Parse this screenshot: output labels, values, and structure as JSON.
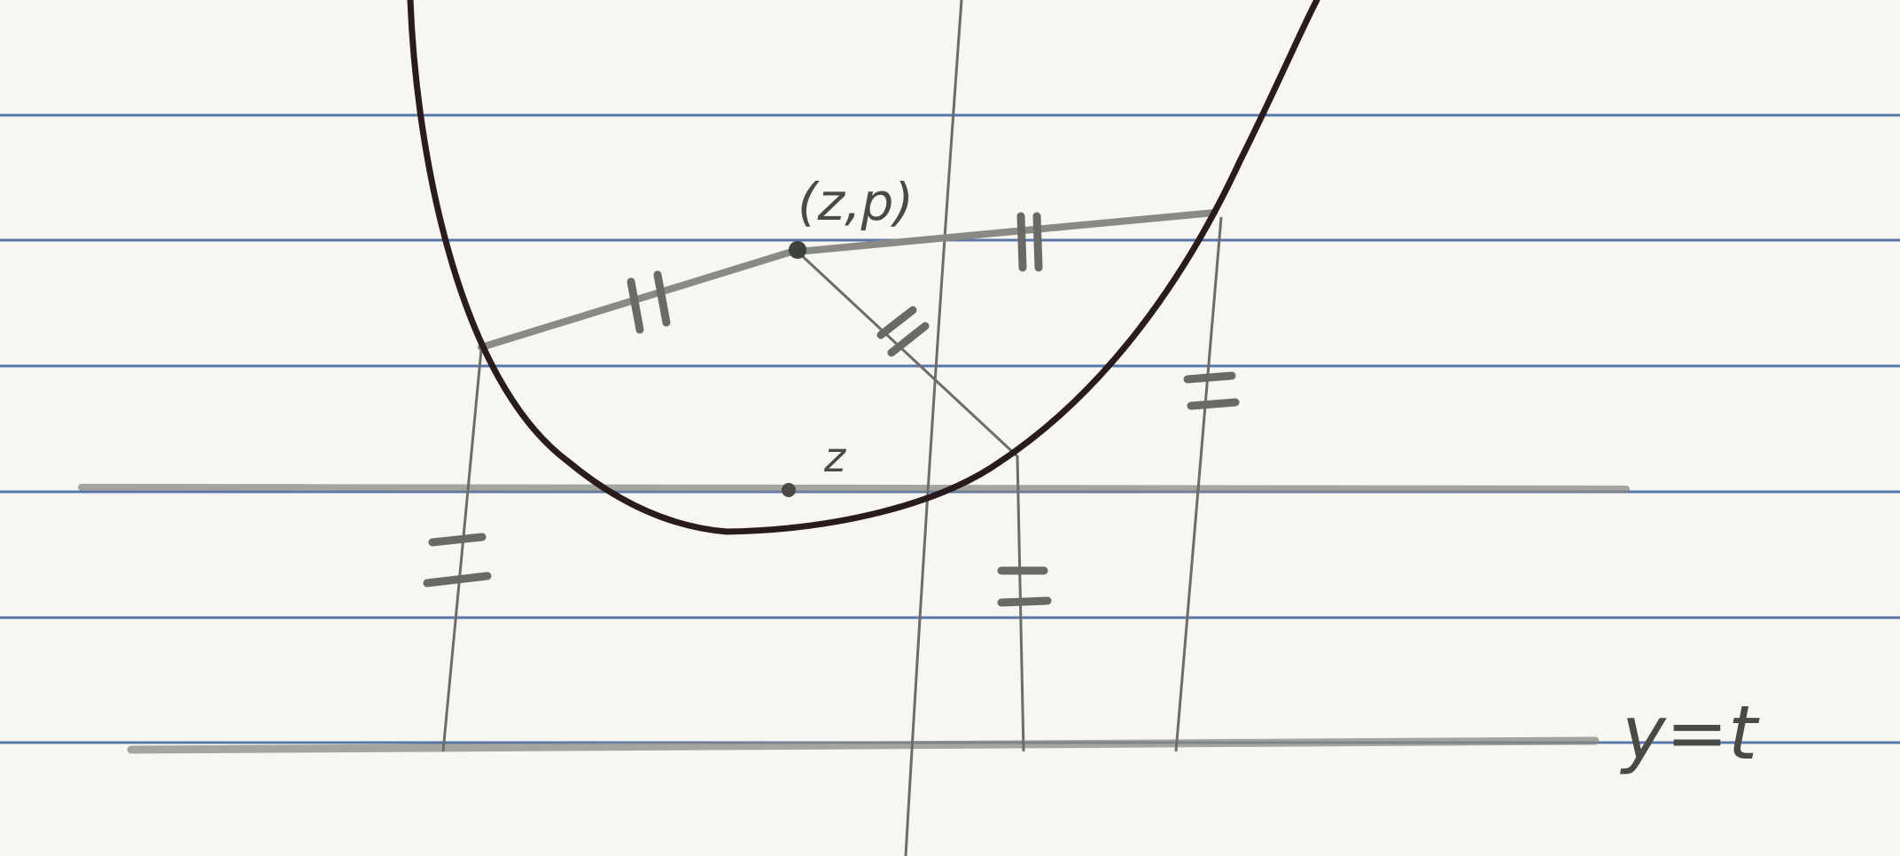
{
  "paper": {
    "background": "#f7f6f1",
    "rule_color": "#3e5fa3",
    "pencil_color": "#8a8a84",
    "ink_color": "#2a1b1e"
  },
  "labels": {
    "focus_point": "(z,p)",
    "vertex_point": "z",
    "directrix": "y=t"
  },
  "marks": {
    "tick_double_slanted": "//",
    "tick_double_flat": "="
  }
}
